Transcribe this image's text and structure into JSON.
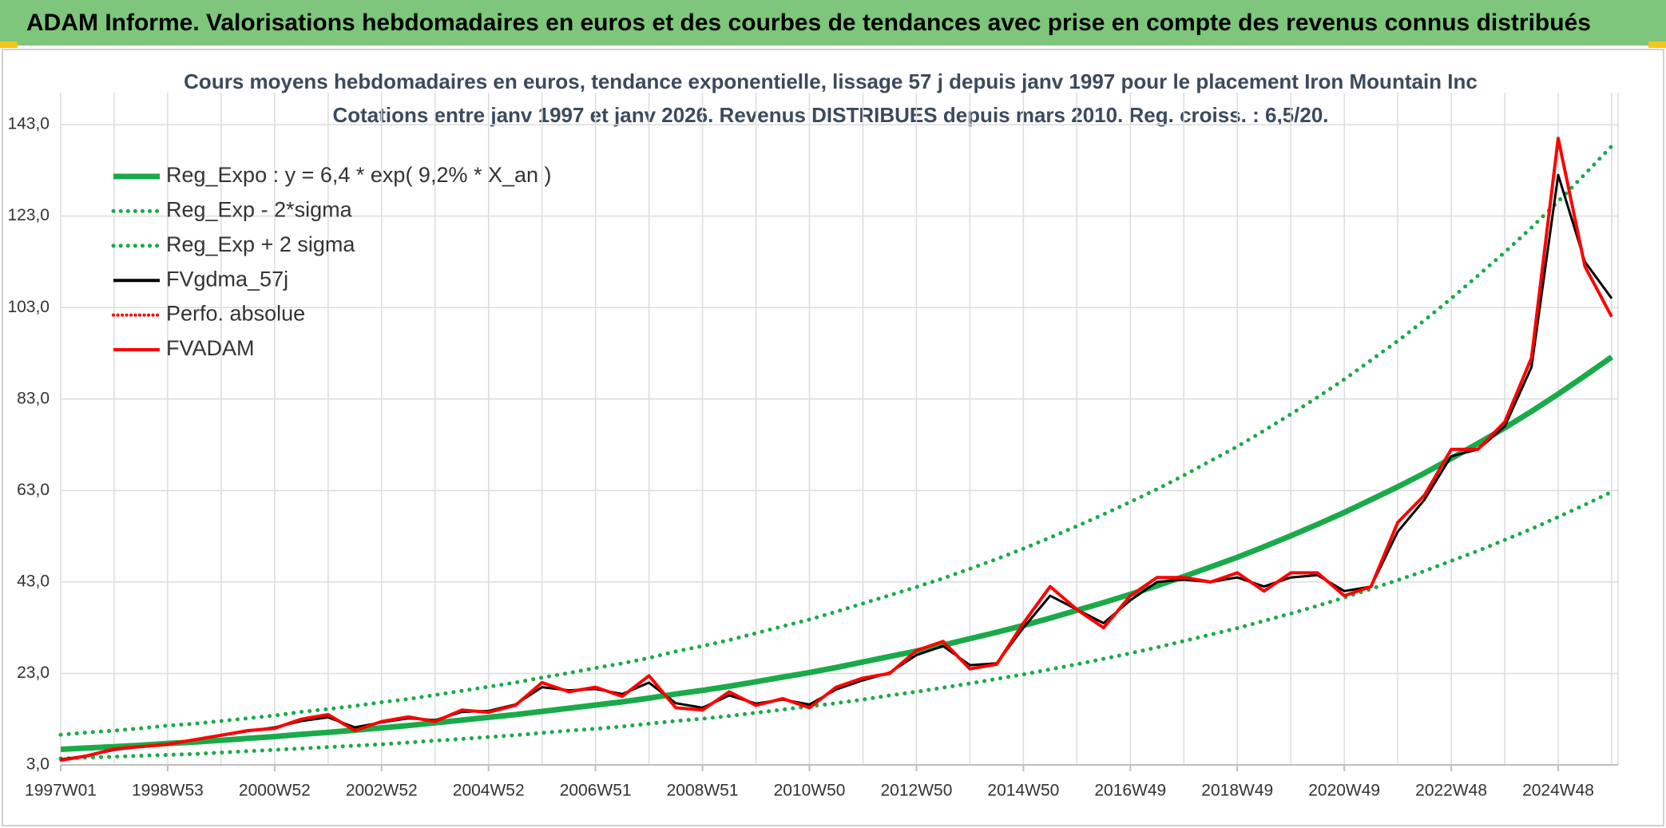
{
  "header": {
    "title": "ADAM Informe. Valorisations hebdomadaires en euros et des courbes de tendances avec prise en compte des revenus connus distribués"
  },
  "chart_data": {
    "type": "line",
    "title": "Cours moyens hebdomadaires en euros, tendance exponentielle, lissage 57 j depuis janv 1997 pour le placement Iron Mountain Inc",
    "subtitle": "Cotations entre janv 1997 et janv 2026. Revenus DISTRIBUES depuis mars 2010. Reg. croiss. : 6,5/20.",
    "categories": [
      "1997W01",
      null,
      null,
      null,
      "1998W53",
      null,
      null,
      null,
      "2000W52",
      null,
      null,
      null,
      "2002W52",
      null,
      null,
      null,
      "2004W52",
      null,
      null,
      null,
      "2006W51",
      null,
      null,
      null,
      "2008W51",
      null,
      null,
      null,
      "2010W50",
      null,
      null,
      null,
      "2012W50",
      null,
      null,
      null,
      "2014W50",
      null,
      null,
      null,
      "2016W49",
      null,
      null,
      null,
      "2018W49",
      null,
      null,
      null,
      "2020W49",
      null,
      null,
      null,
      "2022W48",
      null,
      null,
      null,
      "2024W48",
      null,
      null
    ],
    "ylim": [
      3,
      150
    ],
    "yticks": [
      {
        "value": 3,
        "label": "3,0"
      },
      {
        "value": 23,
        "label": "23,0"
      },
      {
        "value": 43,
        "label": "43,0"
      },
      {
        "value": 63,
        "label": "63,0"
      },
      {
        "value": 83,
        "label": "83,0"
      },
      {
        "value": 103,
        "label": "103,0"
      },
      {
        "value": 123,
        "label": "123,0"
      },
      {
        "value": 143,
        "label": "143,0"
      }
    ],
    "grid": true,
    "legend": "top-left",
    "series": [
      {
        "name": "Reg_Expo : y = 6,4 * exp( 9,2% *  X_an )",
        "color": "#1aaa4a",
        "style": "solid",
        "width": 7,
        "values": [
          6.4,
          6.7,
          7.0,
          7.3,
          7.7,
          8.0,
          8.4,
          8.8,
          9.2,
          9.7,
          10.1,
          10.6,
          11.1,
          11.6,
          12.2,
          12.8,
          13.4,
          14.0,
          14.7,
          15.4,
          16.1,
          16.8,
          17.6,
          18.5,
          19.3,
          20.2,
          21.2,
          22.2,
          23.2,
          24.3,
          25.5,
          26.7,
          27.9,
          29.2,
          30.6,
          32.0,
          33.5,
          35.1,
          36.8,
          38.5,
          40.3,
          42.2,
          44.2,
          46.3,
          48.4,
          50.7,
          53.1,
          55.6,
          58.2,
          61.0,
          63.8,
          66.8,
          70.0,
          73.3,
          76.7,
          80.3,
          84.1,
          88.1,
          92.2
        ]
      },
      {
        "name": "Reg_Exp - 2*sigma",
        "color": "#1aaa4a",
        "style": "dotted",
        "width": 5,
        "values": [
          4.4,
          4.6,
          4.8,
          5.0,
          5.2,
          5.4,
          5.7,
          6.0,
          6.3,
          6.6,
          6.9,
          7.2,
          7.5,
          7.9,
          8.3,
          8.7,
          9.1,
          9.5,
          10.0,
          10.5,
          10.9,
          11.4,
          12.0,
          12.6,
          13.1,
          13.7,
          14.4,
          15.1,
          15.8,
          16.5,
          17.3,
          18.2,
          19.0,
          19.9,
          20.8,
          21.8,
          22.8,
          23.9,
          25.0,
          26.2,
          27.4,
          28.7,
          30.1,
          31.5,
          32.9,
          34.5,
          36.1,
          37.8,
          39.6,
          41.5,
          43.4,
          45.4,
          47.6,
          49.8,
          52.2,
          54.6,
          57.2,
          59.9,
          62.7
        ]
      },
      {
        "name": "Reg_Exp + 2 sigma",
        "color": "#1aaa4a",
        "style": "dotted",
        "width": 5,
        "values": [
          9.6,
          10.1,
          10.5,
          11.0,
          11.6,
          12.0,
          12.6,
          13.2,
          13.8,
          14.6,
          15.2,
          15.9,
          16.7,
          17.4,
          18.3,
          19.2,
          20.1,
          21.0,
          22.1,
          23.1,
          24.2,
          25.2,
          26.4,
          27.8,
          29.0,
          30.3,
          31.8,
          33.3,
          34.8,
          36.5,
          38.3,
          40.1,
          41.9,
          43.8,
          45.9,
          48.0,
          50.3,
          52.7,
          55.2,
          57.8,
          60.5,
          63.3,
          66.3,
          69.5,
          72.6,
          76.1,
          79.7,
          83.4,
          87.3,
          91.5,
          95.7,
          100.2,
          105.0,
          110.0,
          115.1,
          120.5,
          126.2,
          132.2,
          138.3
        ]
      },
      {
        "name": "FVgdma_57j",
        "color": "#000000",
        "style": "solid",
        "width": 3,
        "values": [
          4.2,
          5.0,
          6.3,
          7.0,
          7.6,
          8.5,
          9.4,
          10.4,
          11.2,
          12.6,
          13.4,
          11.2,
          12.3,
          13.2,
          12.8,
          14.6,
          14.8,
          16.2,
          20.0,
          19.3,
          19.6,
          18.5,
          21.0,
          16.5,
          15.5,
          18.2,
          16.4,
          17.3,
          16.2,
          19.5,
          21.5,
          23.2,
          27.0,
          29.0,
          24.8,
          25.2,
          33.0,
          40.0,
          37.0,
          34.0,
          39.0,
          43.0,
          43.5,
          43.0,
          44.0,
          42.0,
          44.0,
          44.5,
          41.0,
          42.0,
          54.0,
          61.0,
          70.5,
          72.0,
          77.0,
          90.0,
          132.0,
          113.0,
          105.0
        ]
      },
      {
        "name": "Perfo. absolue",
        "color": "#ff0000",
        "style": "dotted",
        "width": 3,
        "values": [
          4.0,
          5.0,
          6.5,
          7.0,
          7.5,
          8.5,
          9.5,
          10.5,
          11.0,
          13.0,
          14.0,
          10.5,
          12.5,
          13.5,
          12.5,
          15.0,
          14.5,
          16.0,
          21.0,
          19.0,
          20.0,
          18.0,
          22.5,
          15.5,
          15.0,
          19.0,
          16.0,
          17.5,
          15.5,
          20.0,
          22.0,
          23.0,
          28.0,
          30.0,
          24.0,
          25.0,
          34.0,
          42.0,
          37.0,
          33.0,
          40.0,
          44.0,
          44.0,
          43.0,
          45.0,
          41.0,
          45.0,
          45.0,
          40.0,
          42.0,
          56.0,
          62.0,
          72.0,
          72.0,
          78.0,
          92.0,
          140.0,
          112.0,
          101.0
        ]
      },
      {
        "name": "FVADAM",
        "color": "#ff0000",
        "style": "solid",
        "width": 4,
        "values": [
          4.0,
          5.0,
          6.5,
          7.0,
          7.5,
          8.5,
          9.5,
          10.5,
          11.0,
          13.0,
          14.0,
          10.5,
          12.5,
          13.5,
          12.5,
          15.0,
          14.5,
          16.0,
          21.0,
          19.0,
          20.0,
          18.0,
          22.5,
          15.5,
          15.0,
          19.0,
          16.0,
          17.5,
          15.5,
          20.0,
          22.0,
          23.0,
          28.0,
          30.0,
          24.0,
          25.0,
          34.0,
          42.0,
          37.0,
          33.0,
          40.0,
          44.0,
          44.0,
          43.0,
          45.0,
          41.0,
          45.0,
          45.0,
          40.0,
          42.0,
          56.0,
          62.0,
          72.0,
          72.0,
          78.0,
          92.0,
          140.0,
          112.0,
          101.0
        ]
      }
    ]
  }
}
